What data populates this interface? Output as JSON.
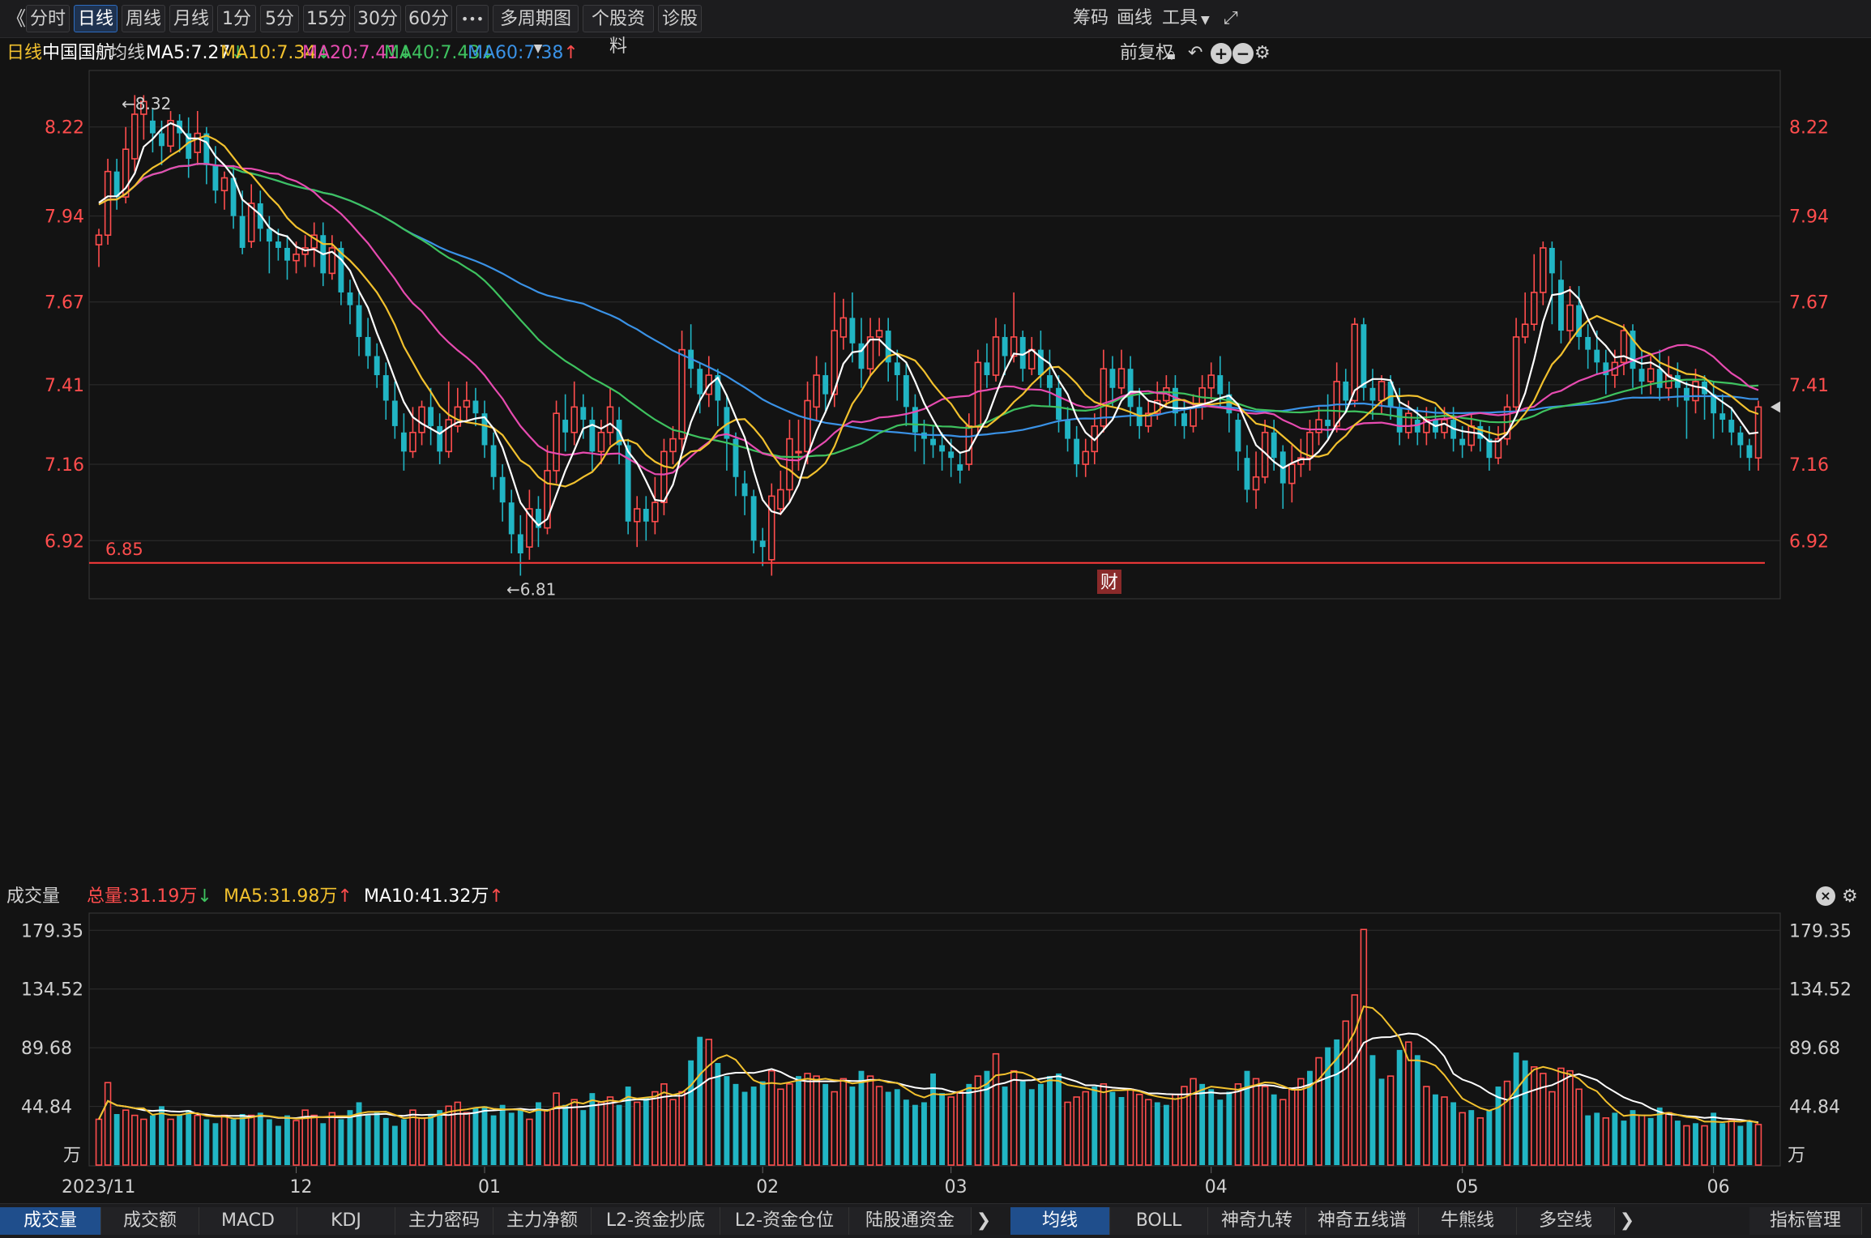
{
  "toolbar": {
    "back": "《",
    "periods": [
      "分时",
      "日线",
      "周线",
      "月线",
      "1分",
      "5分",
      "15分",
      "30分",
      "60分"
    ],
    "more": "•••",
    "multi_period": "多周期图",
    "stock_info": "个股资料",
    "diagnose": "诊股",
    "right_items": [
      "筹码",
      "画线",
      "工具"
    ],
    "expand_icon": "expand-icon"
  },
  "info": {
    "period": "日线",
    "stock": "中国国航",
    "ma_label": "均线",
    "ma5": "MA5:7.27",
    "ma10": "MA10:7.34",
    "ma20": "MA20:7.41",
    "ma40": "MA40:7.43",
    "ma60": "MA60:7.38",
    "adjust": "前复权",
    "arrow_down": "↓",
    "arrow_up": "↑"
  },
  "vol_info": {
    "label": "成交量",
    "total": "总量:31.19万",
    "ma5": "MA5:31.98万",
    "ma10": "MA10:41.32万",
    "unit": "万"
  },
  "colors": {
    "up": "#ff4d4d",
    "down": "#21b5c4",
    "ma5": "#ffffff",
    "ma10": "#f2c12e",
    "ma20": "#e74bb0",
    "ma40": "#3ec25f",
    "ma60": "#3a92e6",
    "grid": "#2e2e2e",
    "axis_text": "#ff4d4d"
  },
  "price_axis": [
    "8.22",
    "7.94",
    "7.67",
    "7.41",
    "7.16",
    "6.92"
  ],
  "vol_axis": [
    "179.35",
    "134.52",
    "89.68",
    "44.84"
  ],
  "date_labels": [
    "2023/11",
    "12",
    "01",
    "02",
    "03",
    "04",
    "05",
    "06"
  ],
  "annotations": {
    "high": "←8.32",
    "low": "←6.81",
    "support": "6.85",
    "badge": "财"
  },
  "chart_data": {
    "type": "candlestick",
    "title": "中国国航 日线",
    "ylim": [
      6.74,
      8.4
    ],
    "vol_ylim": [
      0,
      182
    ],
    "support_line": 6.85,
    "candles": [
      [
        7.85,
        7.88,
        7.78,
        7.9
      ],
      [
        7.88,
        8.08,
        7.85,
        8.12
      ],
      [
        8.08,
        8.0,
        7.96,
        8.12
      ],
      [
        8.0,
        8.15,
        7.98,
        8.22
      ],
      [
        8.12,
        8.26,
        8.08,
        8.32
      ],
      [
        8.26,
        8.3,
        8.18,
        8.32
      ],
      [
        8.24,
        8.2,
        8.14,
        8.28
      ],
      [
        8.2,
        8.16,
        8.1,
        8.24
      ],
      [
        8.16,
        8.24,
        8.14,
        8.27
      ],
      [
        8.24,
        8.2,
        8.14,
        8.26
      ],
      [
        8.2,
        8.12,
        8.06,
        8.25
      ],
      [
        8.14,
        8.2,
        8.1,
        8.27
      ],
      [
        8.2,
        8.1,
        8.04,
        8.22
      ],
      [
        8.1,
        8.02,
        7.98,
        8.16
      ],
      [
        8.02,
        8.06,
        7.96,
        8.08
      ],
      [
        8.06,
        7.94,
        7.9,
        8.1
      ],
      [
        7.94,
        7.84,
        7.82,
        8.02
      ],
      [
        7.86,
        7.98,
        7.84,
        8.04
      ],
      [
        7.98,
        7.9,
        7.86,
        8.02
      ],
      [
        7.9,
        7.86,
        7.76,
        7.94
      ],
      [
        7.86,
        7.84,
        7.8,
        7.9
      ],
      [
        7.84,
        7.8,
        7.74,
        7.88
      ],
      [
        7.8,
        7.82,
        7.76,
        7.86
      ],
      [
        7.82,
        7.84,
        7.78,
        7.88
      ],
      [
        7.84,
        7.88,
        7.78,
        7.92
      ],
      [
        7.88,
        7.76,
        7.72,
        7.92
      ],
      [
        7.76,
        7.84,
        7.74,
        7.88
      ],
      [
        7.84,
        7.7,
        7.66,
        7.86
      ],
      [
        7.7,
        7.66,
        7.6,
        7.74
      ],
      [
        7.66,
        7.56,
        7.5,
        7.7
      ],
      [
        7.56,
        7.5,
        7.46,
        7.62
      ],
      [
        7.5,
        7.44,
        7.4,
        7.54
      ],
      [
        7.44,
        7.36,
        7.3,
        7.48
      ],
      [
        7.36,
        7.28,
        7.24,
        7.42
      ],
      [
        7.26,
        7.2,
        7.14,
        7.32
      ],
      [
        7.2,
        7.26,
        7.18,
        7.34
      ],
      [
        7.26,
        7.34,
        7.22,
        7.36
      ],
      [
        7.34,
        7.28,
        7.22,
        7.4
      ],
      [
        7.28,
        7.2,
        7.16,
        7.32
      ],
      [
        7.2,
        7.3,
        7.18,
        7.42
      ],
      [
        7.28,
        7.34,
        7.26,
        7.4
      ],
      [
        7.34,
        7.36,
        7.3,
        7.42
      ],
      [
        7.36,
        7.32,
        7.28,
        7.4
      ],
      [
        7.32,
        7.22,
        7.18,
        7.36
      ],
      [
        7.22,
        7.12,
        7.08,
        7.26
      ],
      [
        7.12,
        7.04,
        6.98,
        7.16
      ],
      [
        7.04,
        6.94,
        6.88,
        7.08
      ],
      [
        6.94,
        6.88,
        6.81,
        7.0
      ],
      [
        6.9,
        7.02,
        6.86,
        7.08
      ],
      [
        7.02,
        6.96,
        6.9,
        7.06
      ],
      [
        6.96,
        7.14,
        6.94,
        7.22
      ],
      [
        7.14,
        7.32,
        7.1,
        7.36
      ],
      [
        7.3,
        7.26,
        7.2,
        7.38
      ],
      [
        7.26,
        7.34,
        7.22,
        7.42
      ],
      [
        7.34,
        7.3,
        7.24,
        7.38
      ],
      [
        7.3,
        7.2,
        7.14,
        7.34
      ],
      [
        7.2,
        7.26,
        7.16,
        7.3
      ],
      [
        7.26,
        7.34,
        7.22,
        7.4
      ],
      [
        7.3,
        7.22,
        7.16,
        7.34
      ],
      [
        7.22,
        6.98,
        6.94,
        7.24
      ],
      [
        6.98,
        7.02,
        6.9,
        7.06
      ],
      [
        7.02,
        6.98,
        6.92,
        7.06
      ],
      [
        6.98,
        7.04,
        6.94,
        7.12
      ],
      [
        7.04,
        7.2,
        7.0,
        7.24
      ],
      [
        7.2,
        7.24,
        7.16,
        7.28
      ],
      [
        7.24,
        7.52,
        7.2,
        7.58
      ],
      [
        7.52,
        7.46,
        7.4,
        7.6
      ],
      [
        7.46,
        7.38,
        7.32,
        7.48
      ],
      [
        7.38,
        7.44,
        7.34,
        7.5
      ],
      [
        7.44,
        7.36,
        7.28,
        7.46
      ],
      [
        7.34,
        7.24,
        7.14,
        7.38
      ],
      [
        7.24,
        7.12,
        7.06,
        7.26
      ],
      [
        7.1,
        7.06,
        7.0,
        7.14
      ],
      [
        7.06,
        6.92,
        6.88,
        7.08
      ],
      [
        6.92,
        6.9,
        6.84,
        6.96
      ],
      [
        6.86,
        7.06,
        6.81,
        7.1
      ],
      [
        7.02,
        7.08,
        7.0,
        7.14
      ],
      [
        7.08,
        7.24,
        7.04,
        7.3
      ],
      [
        7.2,
        7.2,
        7.14,
        7.3
      ],
      [
        7.2,
        7.36,
        7.16,
        7.42
      ],
      [
        7.34,
        7.44,
        7.3,
        7.5
      ],
      [
        7.44,
        7.38,
        7.32,
        7.48
      ],
      [
        7.38,
        7.58,
        7.34,
        7.7
      ],
      [
        7.56,
        7.62,
        7.52,
        7.68
      ],
      [
        7.62,
        7.54,
        7.48,
        7.7
      ],
      [
        7.54,
        7.46,
        7.4,
        7.62
      ],
      [
        7.46,
        7.56,
        7.44,
        7.62
      ],
      [
        7.56,
        7.58,
        7.5,
        7.62
      ],
      [
        7.58,
        7.48,
        7.42,
        7.62
      ],
      [
        7.48,
        7.44,
        7.36,
        7.52
      ],
      [
        7.44,
        7.34,
        7.28,
        7.48
      ],
      [
        7.34,
        7.26,
        7.2,
        7.38
      ],
      [
        7.26,
        7.24,
        7.16,
        7.3
      ],
      [
        7.24,
        7.22,
        7.18,
        7.28
      ],
      [
        7.22,
        7.2,
        7.14,
        7.26
      ],
      [
        7.2,
        7.18,
        7.12,
        7.24
      ],
      [
        7.16,
        7.14,
        7.1,
        7.2
      ],
      [
        7.16,
        7.28,
        7.14,
        7.32
      ],
      [
        7.28,
        7.48,
        7.26,
        7.52
      ],
      [
        7.48,
        7.44,
        7.4,
        7.54
      ],
      [
        7.44,
        7.56,
        7.42,
        7.62
      ],
      [
        7.56,
        7.5,
        7.44,
        7.6
      ],
      [
        7.5,
        7.56,
        7.48,
        7.7
      ],
      [
        7.56,
        7.46,
        7.42,
        7.58
      ],
      [
        7.46,
        7.52,
        7.44,
        7.56
      ],
      [
        7.52,
        7.44,
        7.4,
        7.58
      ],
      [
        7.44,
        7.4,
        7.34,
        7.52
      ],
      [
        7.4,
        7.3,
        7.26,
        7.44
      ],
      [
        7.3,
        7.24,
        7.2,
        7.34
      ],
      [
        7.24,
        7.16,
        7.12,
        7.28
      ],
      [
        7.16,
        7.2,
        7.12,
        7.24
      ],
      [
        7.2,
        7.28,
        7.16,
        7.32
      ],
      [
        7.28,
        7.46,
        7.26,
        7.52
      ],
      [
        7.46,
        7.4,
        7.34,
        7.5
      ],
      [
        7.4,
        7.46,
        7.38,
        7.52
      ],
      [
        7.46,
        7.34,
        7.28,
        7.5
      ],
      [
        7.34,
        7.28,
        7.24,
        7.4
      ],
      [
        7.28,
        7.32,
        7.26,
        7.36
      ],
      [
        7.32,
        7.36,
        7.3,
        7.42
      ],
      [
        7.36,
        7.4,
        7.34,
        7.44
      ],
      [
        7.4,
        7.32,
        7.28,
        7.44
      ],
      [
        7.32,
        7.28,
        7.24,
        7.36
      ],
      [
        7.28,
        7.34,
        7.26,
        7.38
      ],
      [
        7.34,
        7.4,
        7.3,
        7.44
      ],
      [
        7.4,
        7.44,
        7.36,
        7.48
      ],
      [
        7.44,
        7.38,
        7.34,
        7.5
      ],
      [
        7.38,
        7.32,
        7.26,
        7.42
      ],
      [
        7.3,
        7.2,
        7.14,
        7.32
      ],
      [
        7.18,
        7.08,
        7.04,
        7.22
      ],
      [
        7.08,
        7.12,
        7.02,
        7.2
      ],
      [
        7.12,
        7.26,
        7.1,
        7.3
      ],
      [
        7.26,
        7.18,
        7.14,
        7.3
      ],
      [
        7.2,
        7.1,
        7.02,
        7.22
      ],
      [
        7.1,
        7.16,
        7.04,
        7.22
      ],
      [
        7.16,
        7.18,
        7.12,
        7.24
      ],
      [
        7.18,
        7.26,
        7.14,
        7.3
      ],
      [
        7.26,
        7.3,
        7.22,
        7.34
      ],
      [
        7.3,
        7.28,
        7.24,
        7.38
      ],
      [
        7.28,
        7.42,
        7.26,
        7.48
      ],
      [
        7.42,
        7.36,
        7.32,
        7.46
      ],
      [
        7.36,
        7.6,
        7.34,
        7.62
      ],
      [
        7.6,
        7.4,
        7.36,
        7.62
      ],
      [
        7.4,
        7.36,
        7.3,
        7.46
      ],
      [
        7.36,
        7.42,
        7.32,
        7.44
      ],
      [
        7.42,
        7.34,
        7.3,
        7.44
      ],
      [
        7.34,
        7.26,
        7.22,
        7.4
      ],
      [
        7.26,
        7.32,
        7.24,
        7.36
      ],
      [
        7.3,
        7.26,
        7.22,
        7.34
      ],
      [
        7.26,
        7.3,
        7.22,
        7.34
      ],
      [
        7.3,
        7.26,
        7.24,
        7.34
      ],
      [
        7.26,
        7.3,
        7.24,
        7.34
      ],
      [
        7.3,
        7.24,
        7.2,
        7.34
      ],
      [
        7.24,
        7.22,
        7.18,
        7.28
      ],
      [
        7.22,
        7.28,
        7.2,
        7.32
      ],
      [
        7.28,
        7.24,
        7.2,
        7.3
      ],
      [
        7.24,
        7.18,
        7.14,
        7.28
      ],
      [
        7.18,
        7.24,
        7.16,
        7.28
      ],
      [
        7.24,
        7.34,
        7.22,
        7.38
      ],
      [
        7.34,
        7.56,
        7.32,
        7.62
      ],
      [
        7.56,
        7.6,
        7.54,
        7.7
      ],
      [
        7.6,
        7.7,
        7.58,
        7.82
      ],
      [
        7.7,
        7.84,
        7.66,
        7.86
      ],
      [
        7.84,
        7.76,
        7.6,
        7.86
      ],
      [
        7.74,
        7.58,
        7.54,
        7.8
      ],
      [
        7.58,
        7.66,
        7.54,
        7.72
      ],
      [
        7.66,
        7.56,
        7.52,
        7.72
      ],
      [
        7.56,
        7.52,
        7.46,
        7.6
      ],
      [
        7.52,
        7.48,
        7.44,
        7.58
      ],
      [
        7.48,
        7.44,
        7.38,
        7.52
      ],
      [
        7.44,
        7.48,
        7.4,
        7.52
      ],
      [
        7.48,
        7.58,
        7.44,
        7.6
      ],
      [
        7.58,
        7.46,
        7.4,
        7.6
      ],
      [
        7.46,
        7.42,
        7.38,
        7.52
      ],
      [
        7.42,
        7.46,
        7.38,
        7.5
      ],
      [
        7.46,
        7.4,
        7.36,
        7.52
      ],
      [
        7.4,
        7.44,
        7.36,
        7.5
      ],
      [
        7.44,
        7.4,
        7.34,
        7.48
      ],
      [
        7.4,
        7.36,
        7.24,
        7.42
      ],
      [
        7.36,
        7.42,
        7.32,
        7.46
      ],
      [
        7.42,
        7.38,
        7.3,
        7.44
      ],
      [
        7.38,
        7.32,
        7.24,
        7.42
      ],
      [
        7.32,
        7.3,
        7.26,
        7.38
      ],
      [
        7.3,
        7.26,
        7.22,
        7.34
      ],
      [
        7.26,
        7.22,
        7.18,
        7.28
      ],
      [
        7.22,
        7.18,
        7.14,
        7.24
      ],
      [
        7.18,
        7.34,
        7.14,
        7.36
      ]
    ],
    "volumes": [
      35,
      63,
      39,
      42,
      38,
      35,
      38,
      45,
      35,
      38,
      42,
      38,
      35,
      32,
      38,
      35,
      39,
      38,
      40,
      35,
      30,
      38,
      34,
      42,
      38,
      32,
      40,
      35,
      42,
      48,
      38,
      40,
      36,
      30,
      35,
      42,
      36,
      38,
      42,
      45,
      48,
      40,
      44,
      45,
      38,
      46,
      40,
      42,
      35,
      48,
      42,
      55,
      46,
      50,
      42,
      55,
      48,
      52,
      46,
      60,
      48,
      52,
      56,
      62,
      50,
      56,
      80,
      98,
      96,
      78,
      68,
      62,
      56,
      60,
      64,
      72,
      58,
      62,
      68,
      70,
      68,
      62,
      56,
      66,
      60,
      72,
      68,
      60,
      56,
      58,
      50,
      46,
      48,
      70,
      55,
      52,
      56,
      62,
      68,
      72,
      85,
      60,
      72,
      64,
      58,
      62,
      68,
      70,
      48,
      52,
      56,
      60,
      62,
      56,
      52,
      58,
      54,
      50,
      48,
      46,
      54,
      60,
      66,
      62,
      58,
      50,
      56,
      62,
      72,
      66,
      60,
      54,
      50,
      58,
      66,
      72,
      82,
      90,
      96,
      110,
      130,
      180,
      84,
      66,
      68,
      88,
      94,
      84,
      60,
      54,
      52,
      48,
      40,
      42,
      36,
      42,
      60,
      64,
      86,
      80,
      75,
      70,
      56,
      74,
      72,
      58,
      38,
      40,
      36,
      40,
      34,
      42,
      38,
      36,
      44,
      40,
      34,
      30,
      32,
      30,
      40,
      32,
      34,
      30,
      34,
      31
    ],
    "vol_direction_up": [
      1,
      1,
      0,
      1,
      1,
      1,
      0,
      0,
      1,
      0,
      0,
      1,
      0,
      0,
      1,
      0,
      0,
      1,
      0,
      0,
      0,
      0,
      1,
      1,
      1,
      0,
      1,
      0,
      0,
      0,
      0,
      0,
      0,
      0,
      0,
      1,
      1,
      0,
      0,
      1,
      1,
      1,
      0,
      0,
      0,
      0,
      0,
      0,
      1,
      0,
      1,
      1,
      0,
      1,
      0,
      0,
      1,
      1,
      0,
      0,
      1,
      0,
      1,
      1,
      1,
      1,
      0,
      0,
      1,
      0,
      0,
      0,
      0,
      0,
      0,
      1,
      1,
      1,
      0,
      1,
      1,
      0,
      1,
      1,
      0,
      0,
      1,
      1,
      0,
      0,
      0,
      0,
      0,
      0,
      0,
      1,
      1,
      0,
      1,
      0,
      1,
      0,
      1,
      0,
      0,
      0,
      0,
      0,
      1,
      1,
      1,
      0,
      1,
      0,
      0,
      1,
      1,
      1,
      0,
      0,
      1,
      1,
      1,
      0,
      0,
      0,
      0,
      1,
      0,
      1,
      1,
      0,
      1,
      1,
      1,
      0,
      1,
      0,
      0,
      1,
      1,
      1,
      0,
      0,
      1,
      0,
      1,
      0,
      1,
      0,
      1,
      0,
      1,
      0,
      1,
      0,
      0,
      1,
      0,
      0,
      1,
      1,
      1,
      1,
      1,
      1,
      0,
      0,
      1,
      0,
      0,
      0,
      1,
      0,
      0,
      1,
      0,
      1,
      0,
      1,
      0,
      0,
      1,
      0,
      0,
      1
    ]
  },
  "bottom": {
    "left_tabs": [
      "成交量",
      "成交额",
      "MACD",
      "KDJ",
      "主力密码",
      "主力净额",
      "L2-资金抄底",
      "L2-资金仓位",
      "陆股通资金"
    ],
    "right_tabs": [
      "均线",
      "BOLL",
      "神奇九转",
      "神奇五线谱",
      "牛熊线",
      "多空线"
    ],
    "manage": "指标管理",
    "next": "❯"
  }
}
